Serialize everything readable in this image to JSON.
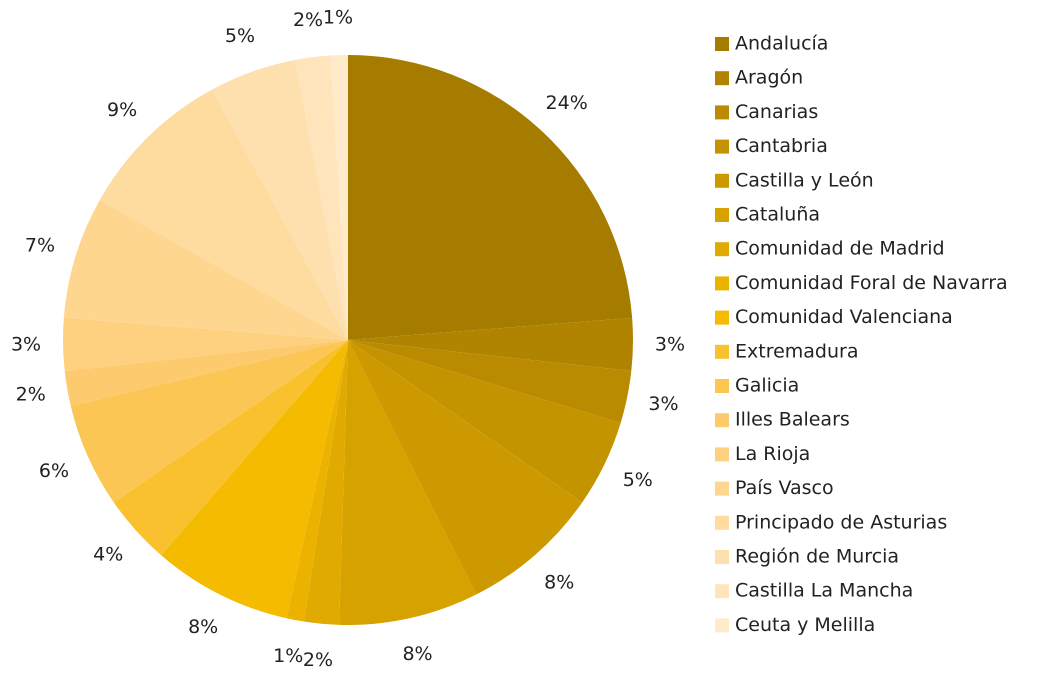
{
  "chart_data": {
    "type": "pie",
    "categories": [
      "Andalucía",
      "Aragón",
      "Canarias",
      "Cantabria",
      "Castilla y León",
      "Cataluña",
      "Comunidad de Madrid",
      "Comunidad Foral de Navarra",
      "Comunidad Valenciana",
      "Extremadura",
      "Galicia",
      "Illes Balears",
      "La Rioja",
      "País Vasco",
      "Principado de Asturias",
      "Región de Murcia",
      "Castilla La Mancha",
      "Ceuta y Melilla"
    ],
    "values": [
      24,
      3,
      3,
      5,
      8,
      8,
      2,
      1,
      8,
      4,
      6,
      2,
      3,
      7,
      9,
      5,
      2,
      1
    ],
    "value_labels": [
      "24%",
      "3%",
      "3%",
      "5%",
      "8%",
      "8%",
      "2%",
      "1%",
      "8%",
      "4%",
      "6%",
      "2%",
      "3%",
      "7%",
      "9%",
      "5%",
      "2%",
      "1%"
    ],
    "colors": [
      "#A67C00",
      "#B08400",
      "#BA8B00",
      "#C49300",
      "#CC9A00",
      "#D6A200",
      "#E0AA00",
      "#EBB300",
      "#F5BB00",
      "#FAC12E",
      "#FCC655",
      "#FDCB6E",
      "#FDD17F",
      "#FED68F",
      "#FEDB9F",
      "#FEDFAE",
      "#FFE4BC",
      "#FFEACA"
    ],
    "legend": "right"
  }
}
